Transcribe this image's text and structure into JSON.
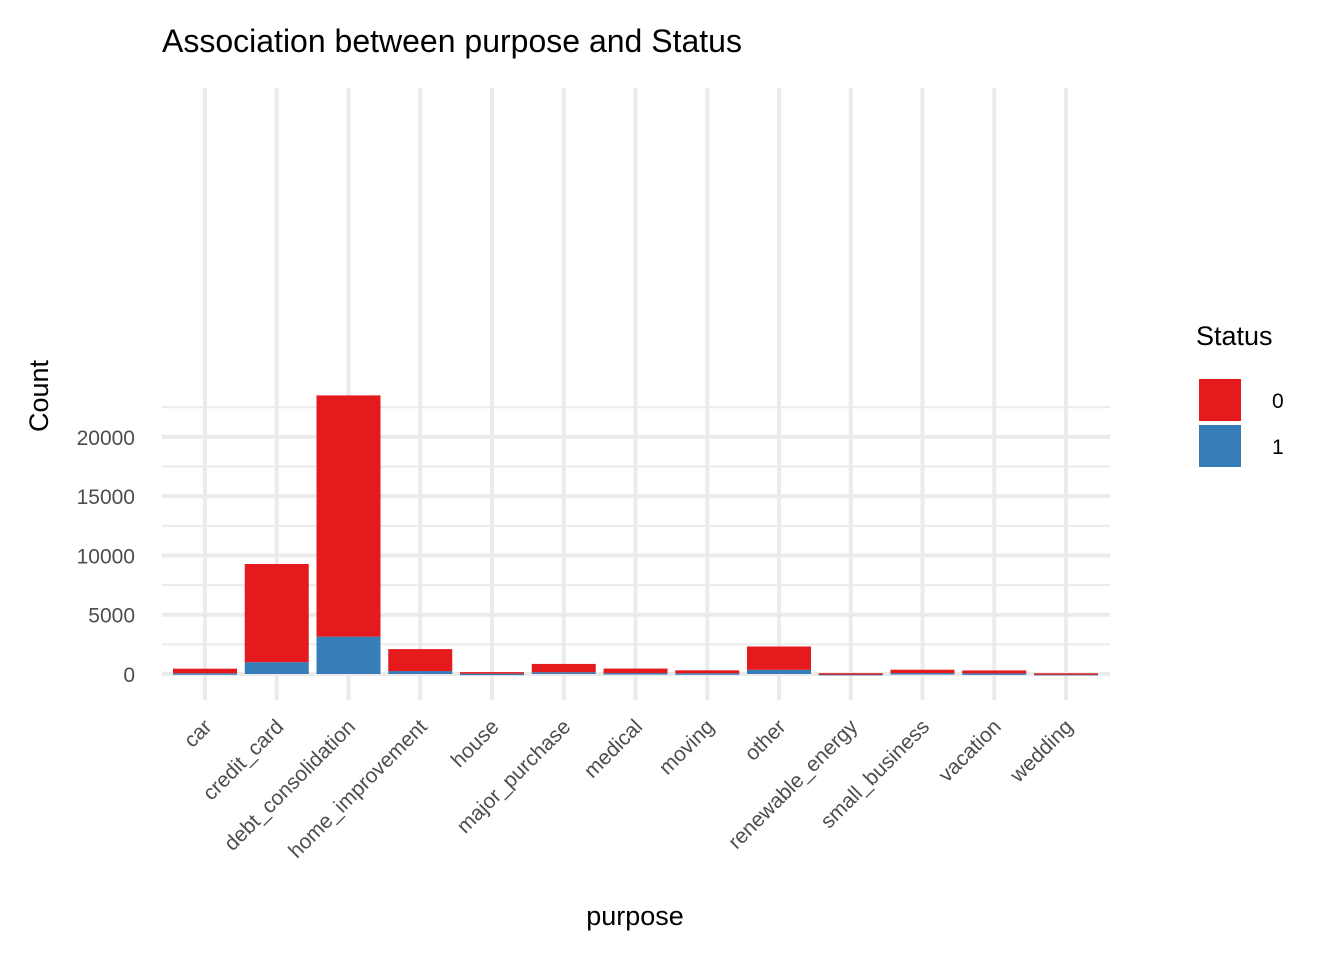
{
  "chart_data": {
    "type": "bar",
    "stacked": true,
    "title": "Association between purpose and Status",
    "xlabel": "purpose",
    "ylabel": "Count",
    "categories": [
      "car",
      "credit_card",
      "debt_consolidation",
      "home_improvement",
      "house",
      "major_purchase",
      "medical",
      "moving",
      "other",
      "renewable_energy",
      "small_business",
      "vacation",
      "wedding"
    ],
    "series": [
      {
        "name": "0",
        "color": "#e41a1c",
        "values": [
          390,
          8280,
          20350,
          1850,
          130,
          700,
          380,
          250,
          1970,
          60,
          280,
          250,
          50
        ]
      },
      {
        "name": "1",
        "color": "#377eb8",
        "values": [
          60,
          1000,
          3150,
          250,
          30,
          150,
          80,
          60,
          350,
          10,
          80,
          50,
          10
        ]
      }
    ],
    "yticks": [
      0,
      5000,
      10000,
      15000,
      20000
    ],
    "ylim": [
      -1200,
      24500
    ],
    "grid": true,
    "legend": {
      "title": "Status",
      "position": "right",
      "entries": [
        "0",
        "1"
      ]
    }
  }
}
